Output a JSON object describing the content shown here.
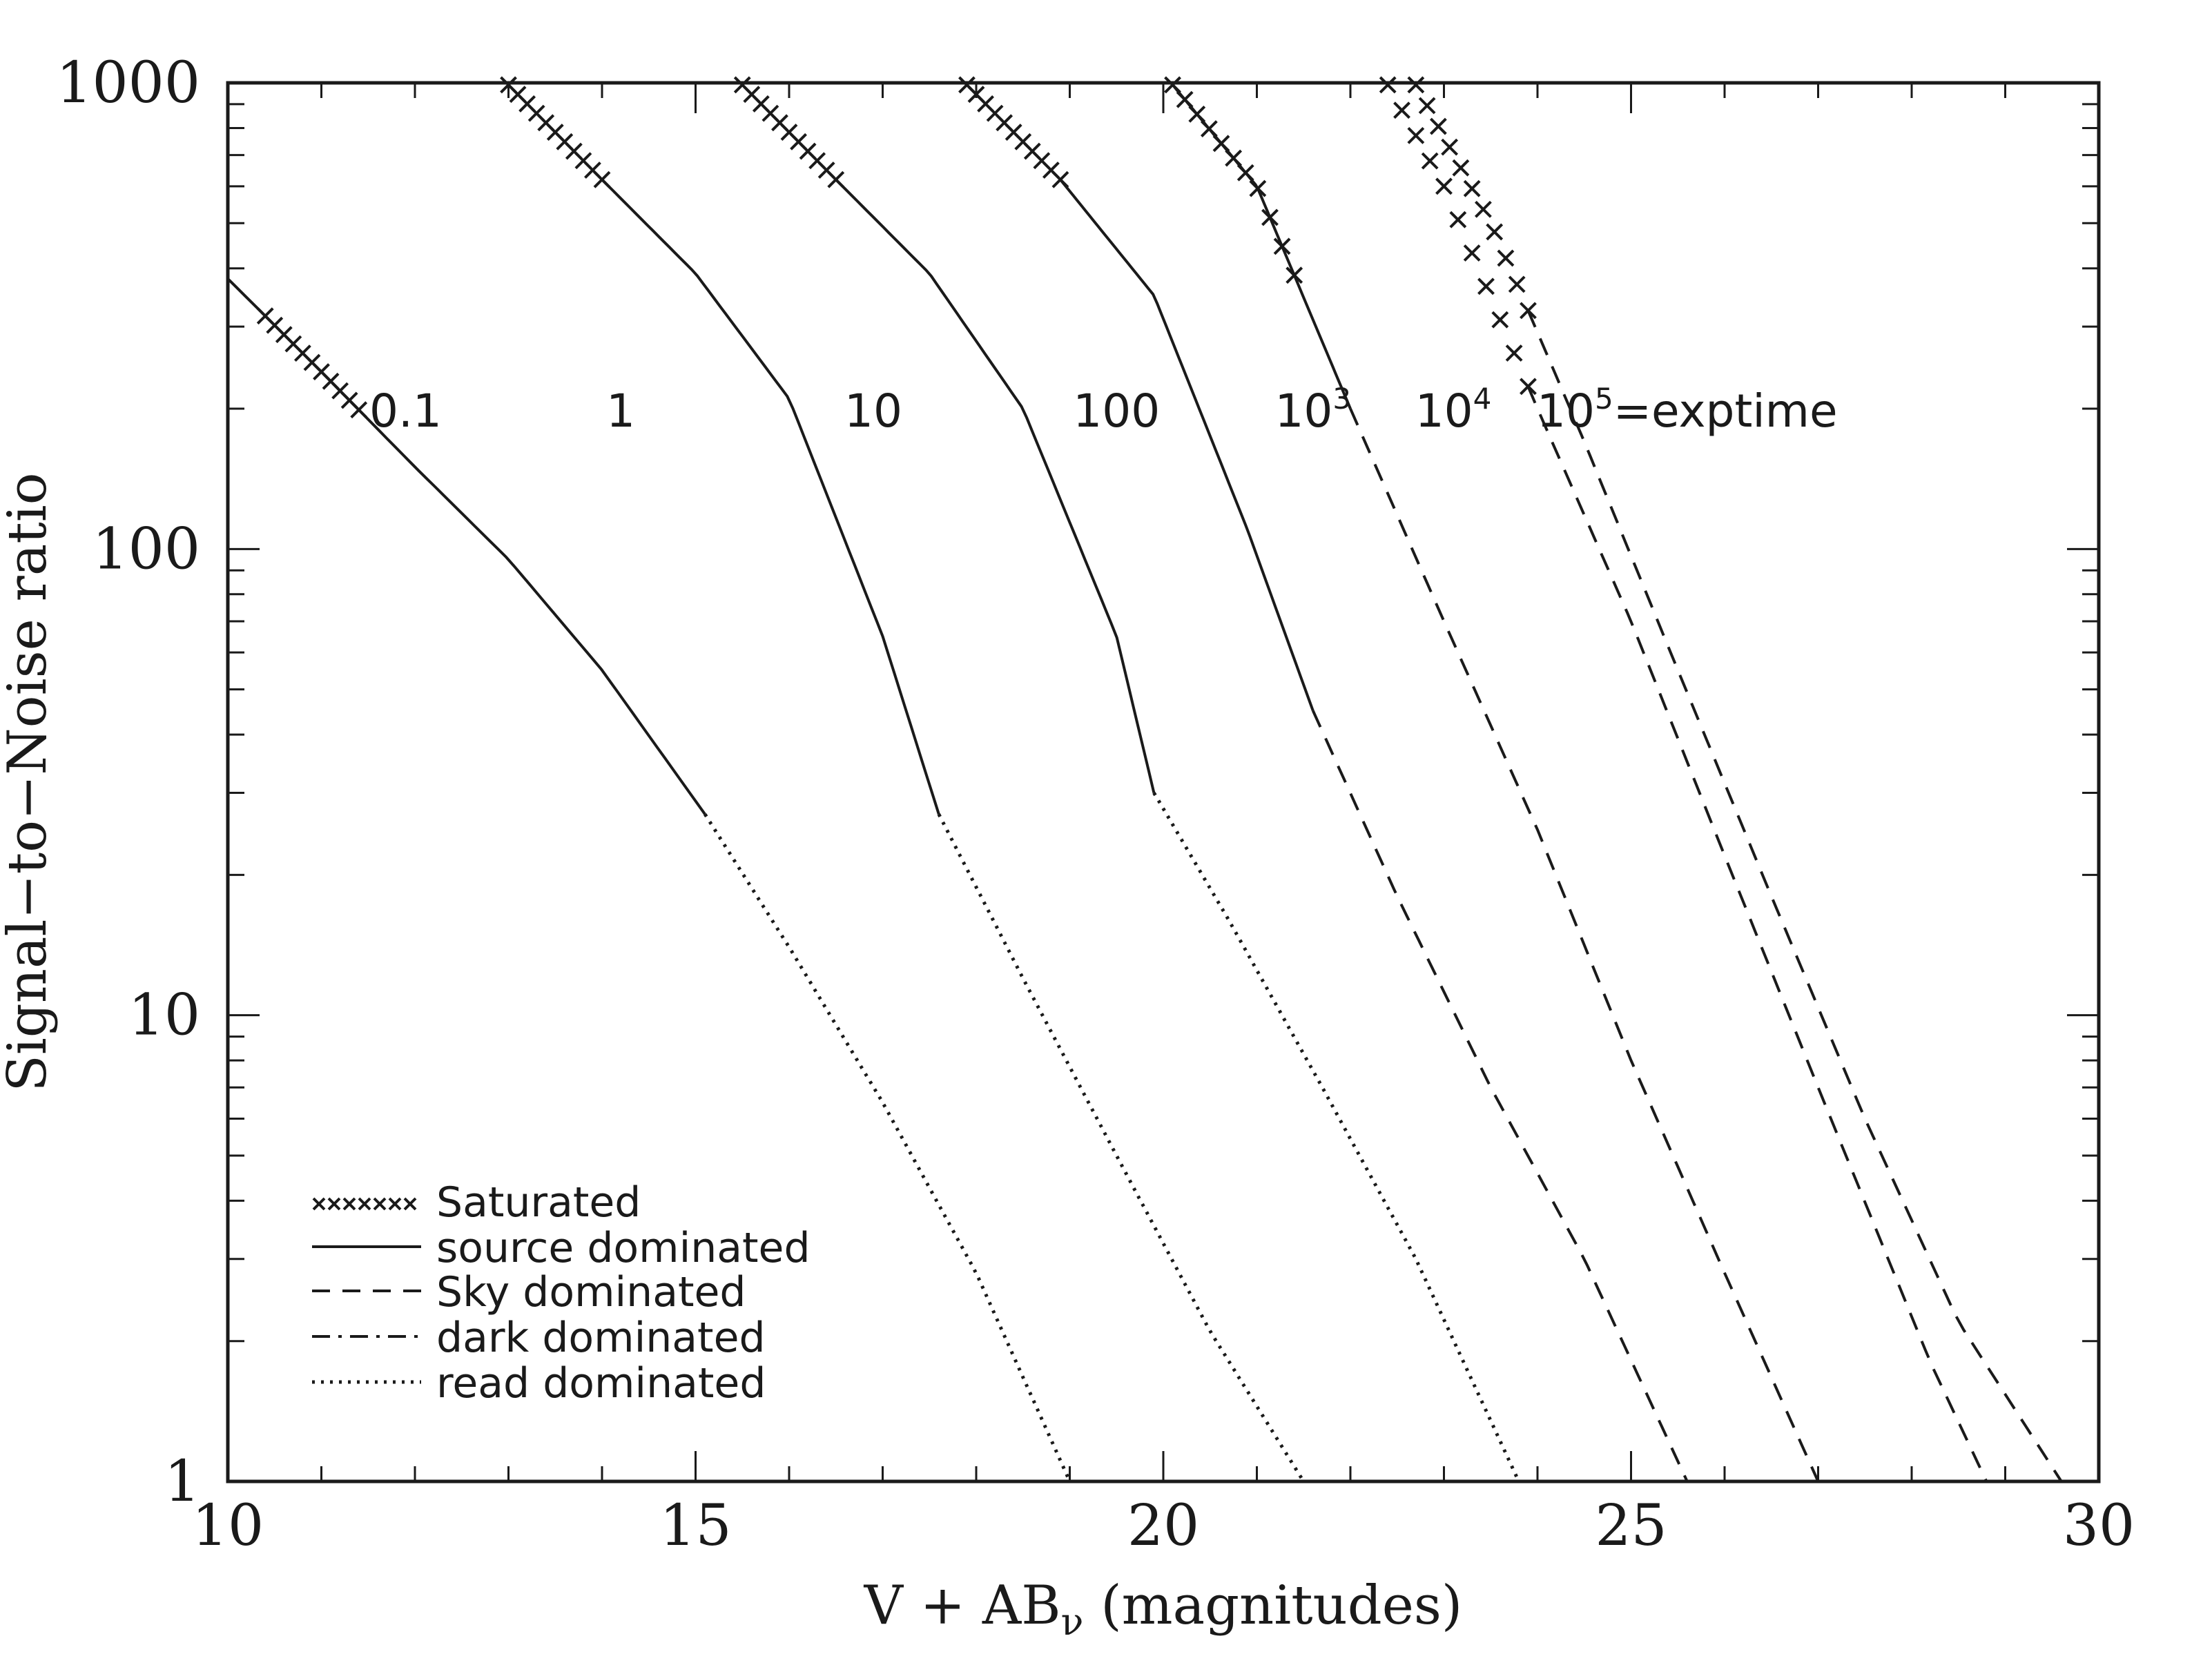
{
  "chart_data": {
    "type": "line",
    "title": "",
    "xlabel": "V + AB",
    "xlabel_sub": "ν",
    "xlabel_suffix": " (magnitudes)",
    "ylabel": "Signal−to−Noise ratio",
    "xlim": [
      10,
      30
    ],
    "ylim": [
      1,
      1000
    ],
    "yscale": "log",
    "x_ticks": [
      "10",
      "15",
      "20",
      "25",
      "30"
    ],
    "y_ticks": [
      "1",
      "10",
      "100",
      "1000"
    ],
    "legend": {
      "placement": "bottom-left",
      "entries": [
        {
          "label": "Saturated",
          "style": "saturated"
        },
        {
          "label": "source dominated",
          "style": "solid"
        },
        {
          "label": "Sky dominated",
          "style": "dashed"
        },
        {
          "label": "dark dominated",
          "style": "dashdot"
        },
        {
          "label": "read dominated",
          "style": "dotted"
        }
      ]
    },
    "series": [
      {
        "curve_label": "0.1",
        "exptime": 0.1,
        "points": [
          [
            10.0,
            380
          ],
          [
            11.0,
            240
          ],
          [
            12.0,
            150
          ],
          [
            13.0,
            95
          ],
          [
            14.0,
            55
          ],
          [
            15.1,
            27
          ],
          [
            16.0,
            14
          ],
          [
            17.0,
            6.5
          ],
          [
            18.0,
            2.8
          ],
          [
            19.0,
            1.0
          ]
        ],
        "segments": [
          {
            "style": "saturated",
            "x": [
              10.4,
              11.4
            ]
          },
          {
            "style": "solid",
            "x": [
              10.0,
              15.1
            ]
          },
          {
            "style": "dotted",
            "x": [
              15.1,
              19.0
            ]
          }
        ]
      },
      {
        "curve_label": "1",
        "exptime": 1,
        "points": [
          [
            13.0,
            990
          ],
          [
            14.0,
            620
          ],
          [
            15.0,
            390
          ],
          [
            16.0,
            210
          ],
          [
            17.0,
            65
          ],
          [
            17.6,
            27
          ],
          [
            18.5,
            12
          ],
          [
            19.5,
            5
          ],
          [
            20.5,
            2.1
          ],
          [
            21.5,
            1.0
          ]
        ],
        "segments": [
          {
            "style": "saturated",
            "x": [
              13.0,
              14.0
            ]
          },
          {
            "style": "solid",
            "x": [
              14.0,
              17.6
            ]
          },
          {
            "style": "dotted",
            "x": [
              17.6,
              21.5
            ]
          }
        ]
      },
      {
        "curve_label": "10",
        "exptime": 10,
        "points": [
          [
            15.5,
            990
          ],
          [
            16.5,
            620
          ],
          [
            17.5,
            390
          ],
          [
            18.5,
            200
          ],
          [
            19.5,
            65
          ],
          [
            19.9,
            30
          ],
          [
            20.7,
            16
          ],
          [
            21.7,
            7
          ],
          [
            22.7,
            3
          ],
          [
            23.8,
            1.0
          ]
        ],
        "segments": [
          {
            "style": "saturated",
            "x": [
              15.5,
              16.5
            ]
          },
          {
            "style": "solid",
            "x": [
              16.5,
              19.9
            ]
          },
          {
            "style": "dotted",
            "x": [
              19.9,
              23.8
            ]
          }
        ]
      },
      {
        "curve_label": "100",
        "exptime": 100,
        "points": [
          [
            17.9,
            990
          ],
          [
            18.9,
            620
          ],
          [
            19.9,
            350
          ],
          [
            20.9,
            110
          ],
          [
            21.6,
            45
          ],
          [
            22.5,
            18
          ],
          [
            23.5,
            7
          ],
          [
            24.5,
            3
          ],
          [
            25.6,
            1.0
          ]
        ],
        "segments": [
          {
            "style": "saturated",
            "x": [
              17.9,
              18.9
            ]
          },
          {
            "style": "solid",
            "x": [
              18.9,
              21.6
            ]
          },
          {
            "style": "dashed",
            "x": [
              21.6,
              25.6
            ]
          }
        ]
      },
      {
        "curve_label": "10^3",
        "exptime": 1000,
        "points": [
          [
            20.1,
            990
          ],
          [
            21.0,
            600
          ],
          [
            22.0,
            200
          ],
          [
            23.0,
            70
          ],
          [
            24.0,
            25
          ],
          [
            25.0,
            8
          ],
          [
            26.0,
            2.8
          ],
          [
            27.0,
            1.0
          ]
        ],
        "segments": [
          {
            "style": "saturated",
            "x": [
              20.1,
              21.4
            ]
          },
          {
            "style": "solid",
            "x": [
              20.1,
              22.0
            ]
          },
          {
            "style": "dashed",
            "x": [
              22.0,
              27.0
            ]
          }
        ]
      },
      {
        "curve_label": "10^4",
        "exptime": 10000,
        "points": [
          [
            22.4,
            990
          ],
          [
            23.0,
            600
          ],
          [
            24.0,
            200
          ],
          [
            25.0,
            70
          ],
          [
            26.0,
            22
          ],
          [
            27.0,
            7
          ],
          [
            28.2,
            1.8
          ],
          [
            28.8,
            1.0
          ]
        ],
        "segments": [
          {
            "style": "saturated",
            "x": [
              22.4,
              23.9
            ]
          },
          {
            "style": "dashed",
            "x": [
              23.9,
              28.8
            ]
          }
        ]
      },
      {
        "curve_label": "10^5=exptime",
        "exptime": 100000,
        "points": [
          [
            22.7,
            990
          ],
          [
            23.5,
            500
          ],
          [
            24.5,
            170
          ],
          [
            25.5,
            55
          ],
          [
            26.5,
            18
          ],
          [
            27.5,
            6
          ],
          [
            28.5,
            2.2
          ],
          [
            29.6,
            1.0
          ]
        ],
        "segments": [
          {
            "style": "saturated",
            "x": [
              22.7,
              23.9
            ]
          },
          {
            "style": "dashed",
            "x": [
              23.9,
              29.6
            ]
          }
        ]
      }
    ]
  }
}
